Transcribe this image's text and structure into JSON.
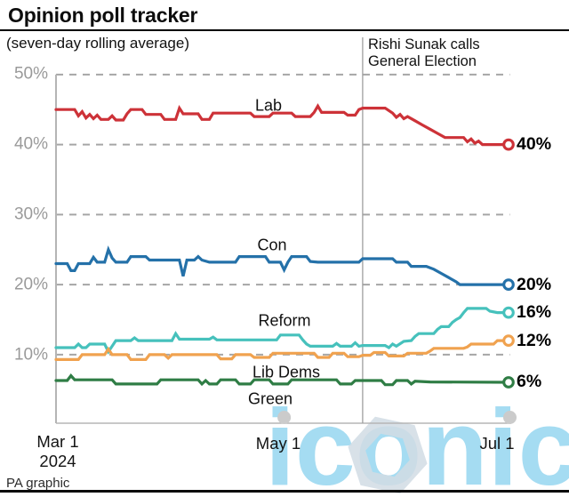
{
  "header": {
    "title": "Opinion poll tracker",
    "subtitle": "(seven-day rolling average)"
  },
  "footer": {
    "credit": "PA graphic"
  },
  "watermark": {
    "text": "iconic",
    "icon": "hexagon-logo"
  },
  "colors": {
    "grid": "#a6a6a6",
    "axis": "#b5b5b5",
    "tick_label": "#9a9a9a",
    "event_line": "#9e9e9e",
    "axis_dot": "#cbcbcb",
    "label_text": "#111111",
    "watermark_blue": "#a5dcf2",
    "watermark_hex": "#d2dce5",
    "lab_red": "#cd3238",
    "con_blue": "#2471a9",
    "reform_teal": "#46c1bc",
    "libdem_orange": "#f0a24f",
    "green_green": "#2f7d45"
  },
  "chart_data": {
    "type": "line",
    "title": "Opinion poll tracker",
    "subtitle": "(seven-day rolling average)",
    "x_axis": {
      "labels": [
        "Mar 1",
        "May 1",
        "Jul 1"
      ],
      "year": "2024",
      "tick_days": [
        0,
        61,
        122
      ],
      "dot_days": [
        61,
        122
      ],
      "range_days": 122
    },
    "y_axis": {
      "ticks": [
        "50%",
        "40%",
        "30%",
        "20%",
        "10%"
      ],
      "tick_values": [
        50,
        40,
        30,
        20,
        10
      ],
      "ylim": [
        0,
        50
      ],
      "gridlines": "dashed"
    },
    "annotation": {
      "line1": "Rishi Sunak calls",
      "line2": "General Election",
      "day": 82,
      "date": "May 22"
    },
    "series": [
      {
        "name": "Lab",
        "color": "#cd3238",
        "end_label": "40%",
        "end_value": 40,
        "points": [
          [
            0,
            45
          ],
          [
            5,
            45
          ],
          [
            6,
            44.1
          ],
          [
            7,
            44.7
          ],
          [
            8,
            43.8
          ],
          [
            9,
            44.3
          ],
          [
            10,
            43.7
          ],
          [
            11,
            44.2
          ],
          [
            12,
            43.6
          ],
          [
            14,
            43.6
          ],
          [
            15,
            44.1
          ],
          [
            16,
            43.5
          ],
          [
            18,
            43.5
          ],
          [
            19,
            44.4
          ],
          [
            20,
            45
          ],
          [
            23,
            45
          ],
          [
            24,
            44.3
          ],
          [
            28,
            44.3
          ],
          [
            29,
            43.6
          ],
          [
            32,
            43.6
          ],
          [
            33,
            45.2
          ],
          [
            34,
            44.4
          ],
          [
            38,
            44.4
          ],
          [
            39,
            43.6
          ],
          [
            41,
            43.6
          ],
          [
            42,
            44.5
          ],
          [
            52,
            44.5
          ],
          [
            53,
            44
          ],
          [
            57,
            44
          ],
          [
            58,
            44.5
          ],
          [
            63,
            44.5
          ],
          [
            64,
            44
          ],
          [
            68,
            44
          ],
          [
            69,
            44.6
          ],
          [
            70,
            45.5
          ],
          [
            71,
            44.6
          ],
          [
            77,
            44.6
          ],
          [
            78,
            44.2
          ],
          [
            80,
            44.2
          ],
          [
            81,
            45
          ],
          [
            82,
            45.2
          ],
          [
            88,
            45.2
          ],
          [
            90,
            44.5
          ],
          [
            91,
            43.9
          ],
          [
            92,
            44.3
          ],
          [
            93,
            43.7
          ],
          [
            94,
            44
          ],
          [
            96,
            43.4
          ],
          [
            98,
            42.8
          ],
          [
            100,
            42.2
          ],
          [
            102,
            41.6
          ],
          [
            104,
            41
          ],
          [
            109,
            41
          ],
          [
            110,
            40.4
          ],
          [
            111,
            40.8
          ],
          [
            112,
            40.2
          ],
          [
            113,
            40.5
          ],
          [
            114,
            40
          ],
          [
            121,
            40
          ]
        ]
      },
      {
        "name": "Con",
        "color": "#2471a9",
        "end_label": "20%",
        "end_value": 20,
        "points": [
          [
            0,
            23
          ],
          [
            3,
            23
          ],
          [
            4,
            22
          ],
          [
            5,
            22
          ],
          [
            6,
            23
          ],
          [
            9,
            23
          ],
          [
            10,
            23.9
          ],
          [
            11,
            23.2
          ],
          [
            13,
            23.2
          ],
          [
            14,
            25
          ],
          [
            15,
            23.8
          ],
          [
            16,
            23.2
          ],
          [
            19,
            23.2
          ],
          [
            20,
            24
          ],
          [
            24,
            24
          ],
          [
            25,
            23.5
          ],
          [
            33,
            23.5
          ],
          [
            34,
            21.2
          ],
          [
            35,
            23.5
          ],
          [
            37,
            23.5
          ],
          [
            38,
            24
          ],
          [
            39,
            23.5
          ],
          [
            41,
            23.2
          ],
          [
            48,
            23.2
          ],
          [
            49,
            24
          ],
          [
            56,
            24
          ],
          [
            57,
            23.2
          ],
          [
            60,
            23.2
          ],
          [
            61,
            22.1
          ],
          [
            62,
            23.2
          ],
          [
            63,
            24
          ],
          [
            67,
            24
          ],
          [
            68,
            23.3
          ],
          [
            70,
            23.2
          ],
          [
            81,
            23.2
          ],
          [
            82,
            23.7
          ],
          [
            90,
            23.7
          ],
          [
            91,
            23.2
          ],
          [
            94,
            23.2
          ],
          [
            95,
            22.6
          ],
          [
            99,
            22.6
          ],
          [
            101,
            22.2
          ],
          [
            103,
            21.6
          ],
          [
            105,
            21
          ],
          [
            107,
            20.4
          ],
          [
            108,
            20
          ],
          [
            121,
            20
          ]
        ]
      },
      {
        "name": "Reform",
        "color": "#46c1bc",
        "end_label": "16%",
        "end_value": 16,
        "points": [
          [
            0,
            11
          ],
          [
            5,
            11
          ],
          [
            6,
            11.5
          ],
          [
            7,
            11
          ],
          [
            8,
            11
          ],
          [
            9,
            11.5
          ],
          [
            13,
            11.5
          ],
          [
            14,
            10.4
          ],
          [
            16,
            12
          ],
          [
            20,
            12
          ],
          [
            21,
            12.4
          ],
          [
            22,
            12
          ],
          [
            31,
            12
          ],
          [
            32,
            13
          ],
          [
            33,
            12.2
          ],
          [
            41,
            12.2
          ],
          [
            42,
            12.5
          ],
          [
            43,
            12.1
          ],
          [
            59,
            12.1
          ],
          [
            60,
            12.8
          ],
          [
            65,
            12.8
          ],
          [
            66,
            12.1
          ],
          [
            67,
            11.5
          ],
          [
            68,
            11.2
          ],
          [
            74,
            11.2
          ],
          [
            75,
            11.6
          ],
          [
            76,
            11.2
          ],
          [
            79,
            11.2
          ],
          [
            80,
            11.7
          ],
          [
            81,
            11.2
          ],
          [
            82,
            11.3
          ],
          [
            88,
            11.3
          ],
          [
            89,
            11
          ],
          [
            90,
            11.5
          ],
          [
            91,
            11.2
          ],
          [
            93,
            11.9
          ],
          [
            95,
            12
          ],
          [
            96,
            12.6
          ],
          [
            97,
            13
          ],
          [
            101,
            13
          ],
          [
            102,
            13.6
          ],
          [
            103,
            14
          ],
          [
            105,
            14
          ],
          [
            106,
            14.6
          ],
          [
            107,
            15
          ],
          [
            108,
            15.3
          ],
          [
            109,
            16
          ],
          [
            110,
            16.6
          ],
          [
            115,
            16.6
          ],
          [
            116,
            16.2
          ],
          [
            118,
            16
          ],
          [
            121,
            16
          ]
        ]
      },
      {
        "name": "Lib Dems",
        "color": "#f0a24f",
        "end_label": "12%",
        "end_value": 12,
        "points": [
          [
            0,
            9.3
          ],
          [
            6,
            9.3
          ],
          [
            7,
            10
          ],
          [
            13,
            10
          ],
          [
            14,
            10.8
          ],
          [
            15,
            10
          ],
          [
            19,
            10
          ],
          [
            20,
            9.3
          ],
          [
            24,
            9.3
          ],
          [
            25,
            10
          ],
          [
            29,
            10
          ],
          [
            30,
            9.5
          ],
          [
            31,
            10
          ],
          [
            43,
            10
          ],
          [
            44,
            9.4
          ],
          [
            47,
            9.4
          ],
          [
            48,
            10
          ],
          [
            52,
            10
          ],
          [
            53,
            9.6
          ],
          [
            57,
            9.6
          ],
          [
            58,
            10.2
          ],
          [
            69,
            10.2
          ],
          [
            70,
            9.6
          ],
          [
            73,
            9.6
          ],
          [
            74,
            10.2
          ],
          [
            77,
            10.2
          ],
          [
            78,
            9.7
          ],
          [
            81,
            9.7
          ],
          [
            82,
            9.9
          ],
          [
            84,
            9.9
          ],
          [
            85,
            10.3
          ],
          [
            88,
            10.3
          ],
          [
            89,
            9.8
          ],
          [
            93,
            9.8
          ],
          [
            94,
            10.2
          ],
          [
            99,
            10.2
          ],
          [
            100,
            10.5
          ],
          [
            101,
            10.9
          ],
          [
            109,
            10.9
          ],
          [
            110,
            11.1
          ],
          [
            111,
            11.5
          ],
          [
            117,
            11.5
          ],
          [
            118,
            12
          ],
          [
            121,
            12
          ]
        ]
      },
      {
        "name": "Green",
        "color": "#2f7d45",
        "end_label": "6%",
        "end_value": 6,
        "points": [
          [
            0,
            6.3
          ],
          [
            3,
            6.3
          ],
          [
            4,
            7
          ],
          [
            5,
            6.4
          ],
          [
            15,
            6.4
          ],
          [
            16,
            5.8
          ],
          [
            27,
            5.8
          ],
          [
            28,
            6.4
          ],
          [
            38,
            6.4
          ],
          [
            39,
            5.8
          ],
          [
            40,
            6.3
          ],
          [
            41,
            5.8
          ],
          [
            43,
            5.8
          ],
          [
            44,
            6.4
          ],
          [
            48,
            6.4
          ],
          [
            49,
            5.8
          ],
          [
            52,
            5.8
          ],
          [
            53,
            6.4
          ],
          [
            57,
            6.4
          ],
          [
            58,
            5.8
          ],
          [
            62,
            5.8
          ],
          [
            63,
            6.4
          ],
          [
            75,
            6.4
          ],
          [
            76,
            5.8
          ],
          [
            79,
            5.8
          ],
          [
            80,
            6.3
          ],
          [
            87,
            6.3
          ],
          [
            88,
            5.7
          ],
          [
            90,
            5.7
          ],
          [
            91,
            6.3
          ],
          [
            94,
            6.3
          ],
          [
            95,
            5.8
          ],
          [
            96,
            6.2
          ],
          [
            100,
            6.1
          ],
          [
            121,
            6.05
          ]
        ]
      }
    ]
  }
}
